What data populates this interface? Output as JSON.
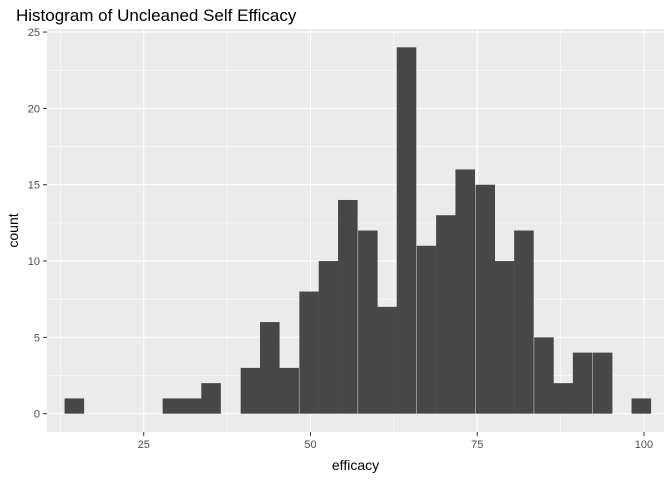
{
  "chart_data": {
    "type": "bar",
    "title": "Histogram of Uncleaned Self Efficacy",
    "xlabel": "efficacy",
    "ylabel": "count",
    "xlim": [
      10.5,
      103
    ],
    "ylim": [
      -1.2,
      25.2
    ],
    "x_ticks": [
      25,
      50,
      75,
      100
    ],
    "y_ticks": [
      0,
      5,
      10,
      15,
      20,
      25
    ],
    "bin_width": 2.93,
    "bins": [
      {
        "center": 14.6,
        "count": 1
      },
      {
        "center": 29.3,
        "count": 1
      },
      {
        "center": 32.2,
        "count": 1
      },
      {
        "center": 35.1,
        "count": 2
      },
      {
        "center": 41.0,
        "count": 3
      },
      {
        "center": 43.9,
        "count": 6
      },
      {
        "center": 46.8,
        "count": 3
      },
      {
        "center": 49.8,
        "count": 8
      },
      {
        "center": 52.7,
        "count": 10
      },
      {
        "center": 55.6,
        "count": 14
      },
      {
        "center": 58.6,
        "count": 12
      },
      {
        "center": 61.5,
        "count": 7
      },
      {
        "center": 64.4,
        "count": 24
      },
      {
        "center": 67.4,
        "count": 11
      },
      {
        "center": 70.3,
        "count": 13
      },
      {
        "center": 73.2,
        "count": 16
      },
      {
        "center": 76.2,
        "count": 15
      },
      {
        "center": 79.1,
        "count": 10
      },
      {
        "center": 82.0,
        "count": 12
      },
      {
        "center": 85.0,
        "count": 5
      },
      {
        "center": 87.9,
        "count": 2
      },
      {
        "center": 90.8,
        "count": 4
      },
      {
        "center": 93.8,
        "count": 4
      },
      {
        "center": 99.6,
        "count": 1
      }
    ],
    "grid": true,
    "legend": "none",
    "colors": {
      "bar": "#474747",
      "panel": "#ebebeb",
      "grid": "#ffffff",
      "tick": "#333333"
    }
  }
}
